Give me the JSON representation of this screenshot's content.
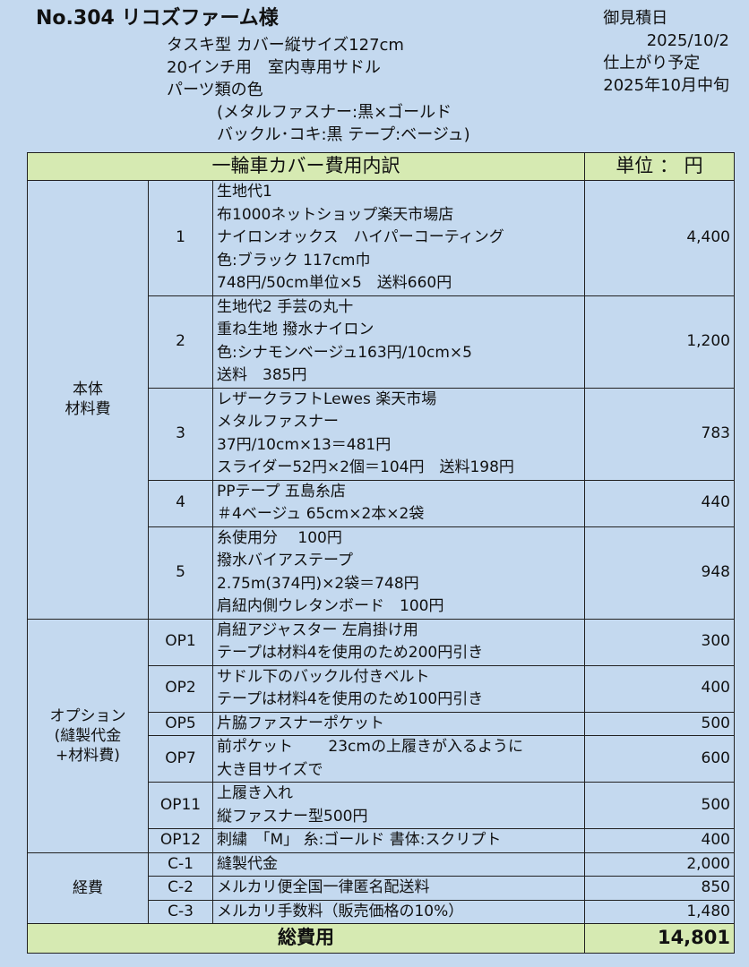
{
  "header": {
    "title": "No.304 リコズファーム様",
    "info": [
      "タスキ型 カバー縦サイズ127cm",
      "20インチ用　室内専用サドル",
      "パーツ類の色",
      "(メタルファスナー:黒×ゴールド",
      "バックル･コキ:黒 テープ:ベージュ)"
    ],
    "right": [
      "御見積日",
      "2025/10/2",
      "仕上がり予定",
      "2025年10月中旬"
    ]
  },
  "table": {
    "title": "一輪車カバー費用内訳",
    "unit": "単位 ： 円",
    "groups": [
      {
        "label": [
          "本体",
          "材料費"
        ],
        "items": [
          {
            "no": "1",
            "lines": [
              "生地代1",
              "布1000ネットショップ楽天市場店",
              "ナイロンオックス　ハイパーコーティング",
              "色:ブラック 117cm巾",
              "748円/50cm単位×5　送料660円"
            ],
            "amount": "4,400"
          },
          {
            "no": "2",
            "lines": [
              "生地代2 手芸の丸十",
              "重ね生地 撥水ナイロン",
              "色:シナモンベージュ163円/10cm×5",
              "送料　385円"
            ],
            "amount": "1,200"
          },
          {
            "no": "3",
            "lines": [
              "レザークラフトLewes 楽天市場",
              "メタルファスナー",
              "37円/10cm×13＝481円",
              "スライダー52円×2個＝104円　送料198円"
            ],
            "amount": "783"
          },
          {
            "no": "4",
            "lines": [
              "PPテープ 五島糸店",
              "＃4ベージュ 65cm×2本×2袋"
            ],
            "amount": "440"
          },
          {
            "no": "5",
            "lines": [
              "糸使用分　 100円",
              "撥水バイアステープ",
              "2.75m(374円)×2袋＝748円",
              "肩紐内側ウレタンボード　100円"
            ],
            "amount": "948"
          }
        ]
      },
      {
        "label": [
          "オプション",
          "(縫製代金",
          "+材料費)"
        ],
        "items": [
          {
            "no": "OP1",
            "lines": [
              "肩紐アジャスター 左肩掛け用",
              "テープは材料4を使用のため200円引き"
            ],
            "amount": "300"
          },
          {
            "no": "OP2",
            "lines": [
              "サドル下のバックル付きベルト",
              "テープは材料4を使用のため100円引き"
            ],
            "amount": "400"
          },
          {
            "no": "OP5",
            "lines": [
              "片脇ファスナーポケット"
            ],
            "amount": "500"
          },
          {
            "no": "OP7",
            "lines": [
              "前ポケット　　 23cmの上履きが入るように",
              "大き目サイズで"
            ],
            "amount": "600"
          },
          {
            "no": "OP11",
            "lines": [
              "上履き入れ",
              "縦ファスナー型500円"
            ],
            "amount": "500"
          },
          {
            "no": "OP12",
            "lines": [
              "刺繍　「M」 糸:ゴールド 書体:スクリプト"
            ],
            "amount": "400"
          }
        ]
      },
      {
        "label": [
          "経費"
        ],
        "items": [
          {
            "no": "C-1",
            "lines": [
              "縫製代金"
            ],
            "amount": "2,000"
          },
          {
            "no": "C-2",
            "lines": [
              "メルカリ便全国一律匿名配送料"
            ],
            "amount": "850"
          },
          {
            "no": "C-3",
            "lines": [
              "メルカリ手数料（販売価格の10%）"
            ],
            "amount": "1,480"
          }
        ]
      }
    ],
    "total_label": "総費用",
    "total": "14,801"
  }
}
